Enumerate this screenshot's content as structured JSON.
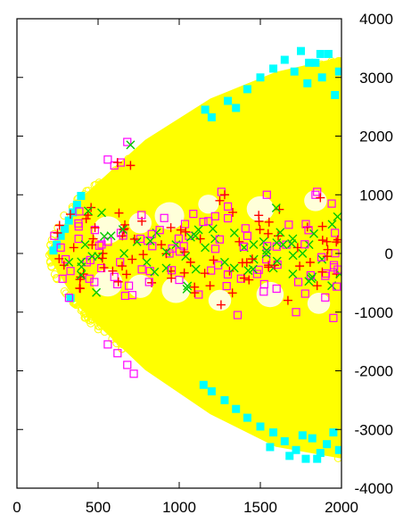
{
  "chart_data": {
    "type": "scatter",
    "title": "",
    "xlabel": "",
    "ylabel": "",
    "xlim": [
      0,
      2000
    ],
    "ylim": [
      -4000,
      4000
    ],
    "x_ticks": [
      "0",
      "500",
      "1000",
      "1500",
      "2000"
    ],
    "y_ticks": [
      "4000",
      "3000",
      "2000",
      "1000",
      "0",
      "-1000",
      "-2000",
      "-3000",
      "-4000"
    ],
    "y_axis_side": "right",
    "grid": false,
    "legend": "none",
    "series": [
      {
        "marker": "open-circle",
        "color": "#ffff00",
        "region": {
          "shape": "parabolic-fan",
          "vertex_x": 200,
          "y_upper_at_2000": 3300,
          "y_lower_at_2000": -3450,
          "description_values": [
            [
              200,
              0
            ],
            [
              400,
              900
            ],
            [
              800,
              1900
            ],
            [
              1200,
              2600
            ],
            [
              1600,
              3050
            ],
            [
              2000,
              3300
            ],
            [
              400,
              -900
            ],
            [
              800,
              -1950
            ],
            [
              1200,
              -2700
            ],
            [
              1600,
              -3250
            ],
            [
              2000,
              -3450
            ]
          ]
        }
      },
      {
        "marker": "filled-square",
        "color": "#00ffff",
        "points": [
          [
            225,
            50
          ],
          [
            245,
            150
          ],
          [
            270,
            300
          ],
          [
            295,
            420
          ],
          [
            320,
            560
          ],
          [
            345,
            700
          ],
          [
            370,
            830
          ],
          [
            395,
            980
          ],
          [
            330,
            -760
          ],
          [
            1160,
            2450
          ],
          [
            1200,
            2320
          ],
          [
            1300,
            2600
          ],
          [
            1350,
            2480
          ],
          [
            1420,
            2800
          ],
          [
            1500,
            3000
          ],
          [
            1580,
            3150
          ],
          [
            1650,
            3300
          ],
          [
            1710,
            3100
          ],
          [
            1750,
            3450
          ],
          [
            1790,
            2900
          ],
          [
            1840,
            3250
          ],
          [
            1880,
            3000
          ],
          [
            1920,
            3400
          ],
          [
            1960,
            2700
          ],
          [
            1985,
            3100
          ],
          [
            1870,
            3400
          ],
          [
            1800,
            3250
          ],
          [
            1150,
            -2240
          ],
          [
            1200,
            -2350
          ],
          [
            1280,
            -2500
          ],
          [
            1350,
            -2650
          ],
          [
            1420,
            -2800
          ],
          [
            1500,
            -2950
          ],
          [
            1580,
            -3050
          ],
          [
            1650,
            -3200
          ],
          [
            1720,
            -3350
          ],
          [
            1780,
            -3500
          ],
          [
            1820,
            -3150
          ],
          [
            1870,
            -3400
          ],
          [
            1910,
            -3250
          ],
          [
            1950,
            -3050
          ],
          [
            1985,
            -3350
          ],
          [
            1560,
            -3300
          ],
          [
            1680,
            -3450
          ],
          [
            1760,
            -3100
          ],
          [
            1850,
            -3500
          ]
        ]
      },
      {
        "marker": "open-square",
        "color": "#ff00ff",
        "points": [
          [
            230,
            300
          ],
          [
            270,
            100
          ],
          [
            300,
            -100
          ],
          [
            330,
            -300
          ],
          [
            380,
            250
          ],
          [
            430,
            -150
          ],
          [
            480,
            400
          ],
          [
            520,
            -250
          ],
          [
            560,
            200
          ],
          [
            600,
            -400
          ],
          [
            640,
            350
          ],
          [
            690,
            -550
          ],
          [
            760,
            250
          ],
          [
            820,
            -300
          ],
          [
            880,
            400
          ],
          [
            940,
            0
          ],
          [
            1000,
            -450
          ],
          [
            1060,
            300
          ],
          [
            1120,
            -700
          ],
          [
            1180,
            550
          ],
          [
            1240,
            -200
          ],
          [
            1300,
            600
          ],
          [
            1360,
            -1050
          ],
          [
            1420,
            300
          ],
          [
            1480,
            -350
          ],
          [
            1540,
            1000
          ],
          [
            1600,
            -600
          ],
          [
            1660,
            150
          ],
          [
            1720,
            -1000
          ],
          [
            1780,
            500
          ],
          [
            1840,
            1000
          ],
          [
            1900,
            -750
          ],
          [
            1960,
            350
          ],
          [
            560,
            1600
          ],
          [
            600,
            1500
          ],
          [
            640,
            1550
          ],
          [
            680,
            1900
          ],
          [
            560,
            -1550
          ],
          [
            620,
            -1700
          ],
          [
            680,
            -1900
          ],
          [
            720,
            -2050
          ],
          [
            1260,
            1050
          ],
          [
            1300,
            800
          ],
          [
            1850,
            1050
          ],
          [
            1940,
            850
          ],
          [
            1950,
            -1100
          ]
        ]
      },
      {
        "marker": "plus",
        "color": "#ff0000",
        "points": [
          [
            250,
            350
          ],
          [
            290,
            -200
          ],
          [
            350,
            100
          ],
          [
            410,
            -350
          ],
          [
            470,
            250
          ],
          [
            530,
            0
          ],
          [
            590,
            -300
          ],
          [
            650,
            300
          ],
          [
            710,
            -100
          ],
          [
            770,
            550
          ],
          [
            830,
            -500
          ],
          [
            890,
            150
          ],
          [
            950,
            -300
          ],
          [
            1010,
            400
          ],
          [
            1070,
            -150
          ],
          [
            1130,
            250
          ],
          [
            1190,
            -550
          ],
          [
            1250,
            900
          ],
          [
            1310,
            -300
          ],
          [
            1370,
            200
          ],
          [
            1430,
            -450
          ],
          [
            1490,
            650
          ],
          [
            1550,
            -200
          ],
          [
            1610,
            300
          ],
          [
            1670,
            -800
          ],
          [
            1730,
            100
          ],
          [
            1790,
            450
          ],
          [
            1850,
            -550
          ],
          [
            1910,
            200
          ],
          [
            1970,
            -350
          ],
          [
            620,
            1550
          ],
          [
            700,
            1500
          ],
          [
            1280,
            1000
          ],
          [
            1330,
            700
          ],
          [
            1870,
            950
          ]
        ]
      },
      {
        "marker": "cross",
        "color": "#00c800",
        "points": [
          [
            320,
            -150
          ],
          [
            420,
            150
          ],
          [
            500,
            -50
          ],
          [
            580,
            300
          ],
          [
            660,
            0
          ],
          [
            700,
            1850
          ],
          [
            740,
            200
          ],
          [
            800,
            -150
          ],
          [
            860,
            350
          ],
          [
            920,
            -250
          ],
          [
            980,
            150
          ],
          [
            1040,
            -50
          ],
          [
            1100,
            300
          ],
          [
            1160,
            100
          ],
          [
            1220,
            250
          ],
          [
            1280,
            -150
          ],
          [
            1340,
            350
          ],
          [
            1400,
            100
          ],
          [
            1460,
            -100
          ],
          [
            1520,
            200
          ],
          [
            1580,
            -250
          ],
          [
            1640,
            150
          ],
          [
            1700,
            -350
          ],
          [
            1760,
            0
          ],
          [
            1820,
            -400
          ],
          [
            1880,
            -100
          ],
          [
            1940,
            -550
          ],
          [
            1990,
            -350
          ],
          [
            1700,
            250
          ],
          [
            1800,
            150
          ]
        ]
      }
    ]
  }
}
